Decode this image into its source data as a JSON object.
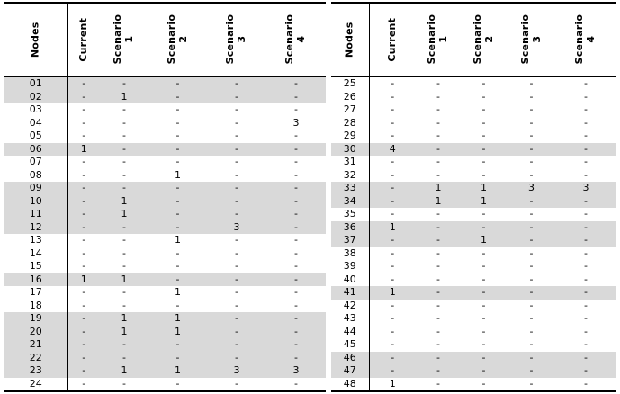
{
  "style": {
    "background": "#ffffff",
    "shaded_row_color": "#d9d9d9",
    "border_color": "#000000",
    "text_color": "#000000"
  },
  "tables": [
    {
      "name": "nodes-table-left",
      "headers": [
        "Nodes",
        "Current",
        "Scenario\n1",
        "Scenario\n2",
        "Scenario\n3",
        "Scenario\n4"
      ],
      "rows": [
        {
          "node": "01",
          "values": [
            "-",
            "-",
            "-",
            "-",
            "-"
          ],
          "shaded": true
        },
        {
          "node": "02",
          "values": [
            "-",
            "1",
            "-",
            "-",
            "-"
          ],
          "shaded": true
        },
        {
          "node": "03",
          "values": [
            "-",
            "-",
            "-",
            "-",
            "-"
          ],
          "shaded": false
        },
        {
          "node": "04",
          "values": [
            "-",
            "-",
            "-",
            "-",
            "3"
          ],
          "shaded": false
        },
        {
          "node": "05",
          "values": [
            "-",
            "-",
            "-",
            "-",
            "-"
          ],
          "shaded": false
        },
        {
          "node": "06",
          "values": [
            "1",
            "-",
            "-",
            "-",
            "-"
          ],
          "shaded": true
        },
        {
          "node": "07",
          "values": [
            "-",
            "-",
            "-",
            "-",
            "-"
          ],
          "shaded": false
        },
        {
          "node": "08",
          "values": [
            "-",
            "-",
            "1",
            "-",
            "-"
          ],
          "shaded": false
        },
        {
          "node": "09",
          "values": [
            "-",
            "-",
            "-",
            "-",
            "-"
          ],
          "shaded": true
        },
        {
          "node": "10",
          "values": [
            "-",
            "1",
            "-",
            "-",
            "-"
          ],
          "shaded": true
        },
        {
          "node": "11",
          "values": [
            "-",
            "1",
            "-",
            "-",
            "-"
          ],
          "shaded": true
        },
        {
          "node": "12",
          "values": [
            "-",
            "-",
            "-",
            "3",
            "-"
          ],
          "shaded": true
        },
        {
          "node": "13",
          "values": [
            "-",
            "-",
            "1",
            "-",
            "-"
          ],
          "shaded": false
        },
        {
          "node": "14",
          "values": [
            "-",
            "-",
            "-",
            "-",
            "-"
          ],
          "shaded": false
        },
        {
          "node": "15",
          "values": [
            "-",
            "-",
            "-",
            "-",
            "-"
          ],
          "shaded": false
        },
        {
          "node": "16",
          "values": [
            "1",
            "1",
            "-",
            "-",
            "-"
          ],
          "shaded": true
        },
        {
          "node": "17",
          "values": [
            "-",
            "-",
            "1",
            "-",
            "-"
          ],
          "shaded": false
        },
        {
          "node": "18",
          "values": [
            "-",
            "-",
            "-",
            "-",
            "-"
          ],
          "shaded": false
        },
        {
          "node": "19",
          "values": [
            "-",
            "1",
            "1",
            "-",
            "-"
          ],
          "shaded": true
        },
        {
          "node": "20",
          "values": [
            "-",
            "1",
            "1",
            "-",
            "-"
          ],
          "shaded": true
        },
        {
          "node": "21",
          "values": [
            "-",
            "-",
            "-",
            "-",
            "-"
          ],
          "shaded": true
        },
        {
          "node": "22",
          "values": [
            "-",
            "-",
            "-",
            "-",
            "-"
          ],
          "shaded": true
        },
        {
          "node": "23",
          "values": [
            "-",
            "1",
            "1",
            "3",
            "3"
          ],
          "shaded": true
        },
        {
          "node": "24",
          "values": [
            "-",
            "-",
            "-",
            "-",
            "-"
          ],
          "shaded": false
        }
      ]
    },
    {
      "name": "nodes-table-right",
      "headers": [
        "Nodes",
        "Current",
        "Scenario\n1",
        "Scenario\n2",
        "Scenario\n3",
        "Scenario\n4"
      ],
      "rows": [
        {
          "node": "25",
          "values": [
            "-",
            "-",
            "-",
            "-",
            "-"
          ],
          "shaded": false
        },
        {
          "node": "26",
          "values": [
            "-",
            "-",
            "-",
            "-",
            "-"
          ],
          "shaded": false
        },
        {
          "node": "27",
          "values": [
            "-",
            "-",
            "-",
            "-",
            "-"
          ],
          "shaded": false
        },
        {
          "node": "28",
          "values": [
            "-",
            "-",
            "-",
            "-",
            "-"
          ],
          "shaded": false
        },
        {
          "node": "29",
          "values": [
            "-",
            "-",
            "-",
            "-",
            "-"
          ],
          "shaded": false
        },
        {
          "node": "30",
          "values": [
            "4",
            "-",
            "-",
            "-",
            "-"
          ],
          "shaded": true
        },
        {
          "node": "31",
          "values": [
            "-",
            "-",
            "-",
            "-",
            "-"
          ],
          "shaded": false
        },
        {
          "node": "32",
          "values": [
            "-",
            "-",
            "-",
            "-",
            "-"
          ],
          "shaded": false
        },
        {
          "node": "33",
          "values": [
            "-",
            "1",
            "1",
            "3",
            "3"
          ],
          "shaded": true
        },
        {
          "node": "34",
          "values": [
            "-",
            "1",
            "1",
            "-",
            "-"
          ],
          "shaded": true
        },
        {
          "node": "35",
          "values": [
            "-",
            "-",
            "-",
            "-",
            "-"
          ],
          "shaded": false
        },
        {
          "node": "36",
          "values": [
            "1",
            "-",
            "-",
            "-",
            "-"
          ],
          "shaded": true
        },
        {
          "node": "37",
          "values": [
            "-",
            "-",
            "1",
            "-",
            "-"
          ],
          "shaded": true
        },
        {
          "node": "38",
          "values": [
            "-",
            "-",
            "-",
            "-",
            "-"
          ],
          "shaded": false
        },
        {
          "node": "39",
          "values": [
            "-",
            "-",
            "-",
            "-",
            "-"
          ],
          "shaded": false
        },
        {
          "node": "40",
          "values": [
            "-",
            "-",
            "-",
            "-",
            "-"
          ],
          "shaded": false
        },
        {
          "node": "41",
          "values": [
            "1",
            "-",
            "-",
            "-",
            "-"
          ],
          "shaded": true
        },
        {
          "node": "42",
          "values": [
            "-",
            "-",
            "-",
            "-",
            "-"
          ],
          "shaded": false
        },
        {
          "node": "43",
          "values": [
            "-",
            "-",
            "-",
            "-",
            "-"
          ],
          "shaded": false
        },
        {
          "node": "44",
          "values": [
            "-",
            "-",
            "-",
            "-",
            "-"
          ],
          "shaded": false
        },
        {
          "node": "45",
          "values": [
            "-",
            "-",
            "-",
            "-",
            "-"
          ],
          "shaded": false
        },
        {
          "node": "46",
          "values": [
            "-",
            "-",
            "-",
            "-",
            "-"
          ],
          "shaded": true
        },
        {
          "node": "47",
          "values": [
            "-",
            "-",
            "-",
            "-",
            "-"
          ],
          "shaded": true
        },
        {
          "node": "48",
          "values": [
            "1",
            "-",
            "-",
            "-",
            "-"
          ],
          "shaded": false
        }
      ]
    }
  ]
}
